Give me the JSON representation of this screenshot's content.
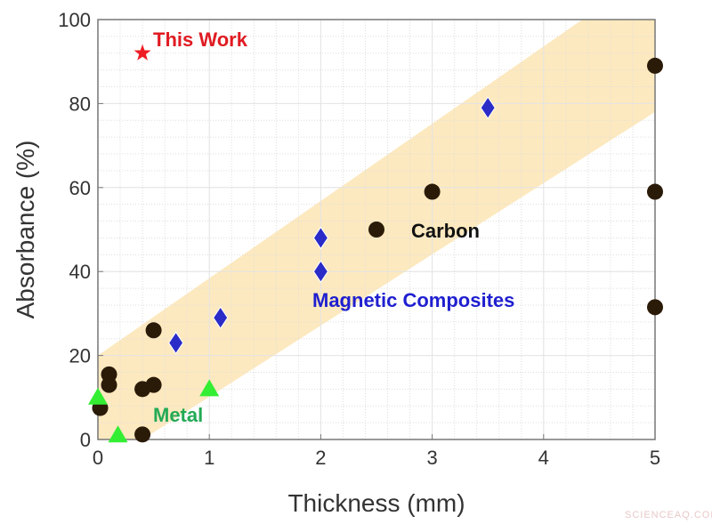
{
  "chart_data": {
    "type": "scatter",
    "xlabel": "Thickness (mm)",
    "ylabel": "Absorbance (%)",
    "xlim": [
      0,
      5
    ],
    "ylim": [
      0,
      100
    ],
    "xticks": [
      "0",
      "1",
      "2",
      "3",
      "4",
      "5"
    ],
    "yticks": [
      "0",
      "20",
      "40",
      "60",
      "80",
      "100"
    ],
    "grid": true,
    "band": {
      "color": "#fde9bf",
      "upper": [
        [
          0,
          20
        ],
        [
          5,
          112
        ]
      ],
      "lower": [
        [
          0.4,
          0
        ],
        [
          5,
          78
        ]
      ]
    },
    "series": [
      {
        "name": "Carbon",
        "marker": "circle",
        "color": "#2a1a08",
        "label_color": "#111111",
        "points": [
          [
            0.02,
            7.5
          ],
          [
            0.1,
            15.5
          ],
          [
            0.1,
            13
          ],
          [
            0.4,
            12
          ],
          [
            0.5,
            13
          ],
          [
            0.5,
            26
          ],
          [
            0.4,
            1.2
          ],
          [
            2.5,
            50
          ],
          [
            3,
            59
          ],
          [
            5,
            89
          ],
          [
            5,
            59
          ],
          [
            5,
            31.5
          ]
        ]
      },
      {
        "name": "Magnetic Composites",
        "marker": "diamond",
        "color": "#2b2bc8",
        "label_color": "#1f1fd0",
        "points": [
          [
            0.7,
            23
          ],
          [
            1.1,
            29
          ],
          [
            2,
            48
          ],
          [
            2,
            40
          ],
          [
            3.5,
            79
          ]
        ]
      },
      {
        "name": "Metal",
        "marker": "triangle",
        "color": "#33ee33",
        "label_color": "#22aa55",
        "points": [
          [
            0,
            10
          ],
          [
            0.18,
            1
          ],
          [
            1,
            12
          ]
        ]
      },
      {
        "name": "This Work",
        "marker": "star",
        "color": "#ee1c24",
        "label_color": "#e01b22",
        "points": [
          [
            0.4,
            92
          ]
        ]
      }
    ]
  },
  "watermark": "SCIENCEAQ.COM"
}
